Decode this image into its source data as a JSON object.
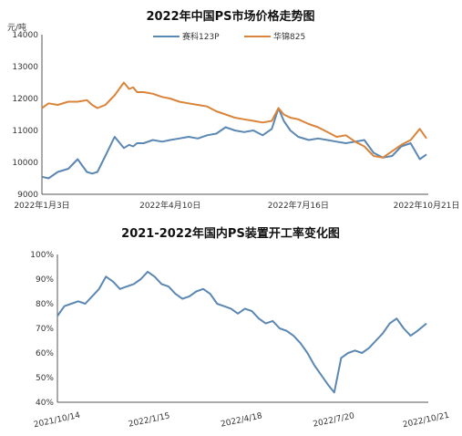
{
  "chart_data": [
    {
      "type": "line",
      "title": "2022年中国PS市场价格走势图",
      "unit_label": "元/吨",
      "ylim": [
        9000,
        14000
      ],
      "yticks": [
        "9000",
        "10000",
        "11000",
        "12000",
        "13000",
        "14000"
      ],
      "xticks": [
        "2022年1月3日",
        "2022年4月10日",
        "2022年7月16日",
        "2022年10月21日"
      ],
      "x_range": [
        "2022-01-03",
        "2022-10-21"
      ],
      "legend_position": "top",
      "colors": {
        "series1": "#5b87b3",
        "series2": "#d9843a"
      },
      "series": [
        {
          "name": "赛科123P",
          "x": [
            "2022-01-03",
            "2022-01-08",
            "2022-01-15",
            "2022-01-23",
            "2022-01-30",
            "2022-02-06",
            "2022-02-10",
            "2022-02-14",
            "2022-02-20",
            "2022-02-27",
            "2022-03-06",
            "2022-03-10",
            "2022-03-13",
            "2022-03-16",
            "2022-03-21",
            "2022-03-28",
            "2022-04-04",
            "2022-04-10",
            "2022-04-17",
            "2022-04-24",
            "2022-05-01",
            "2022-05-08",
            "2022-05-15",
            "2022-05-22",
            "2022-05-29",
            "2022-06-05",
            "2022-06-12",
            "2022-06-19",
            "2022-06-26",
            "2022-07-01",
            "2022-07-05",
            "2022-07-10",
            "2022-07-16",
            "2022-07-24",
            "2022-07-31",
            "2022-08-07",
            "2022-08-14",
            "2022-08-21",
            "2022-08-28",
            "2022-09-04",
            "2022-09-11",
            "2022-09-18",
            "2022-09-25",
            "2022-10-02",
            "2022-10-09",
            "2022-10-16",
            "2022-10-21"
          ],
          "values": [
            9550,
            9500,
            9700,
            9800,
            10100,
            9700,
            9650,
            9700,
            10200,
            10800,
            10450,
            10550,
            10500,
            10600,
            10600,
            10700,
            10650,
            10700,
            10750,
            10800,
            10750,
            10850,
            10900,
            11100,
            11000,
            10950,
            11000,
            10850,
            11050,
            11700,
            11300,
            11000,
            10800,
            10700,
            10750,
            10700,
            10650,
            10600,
            10650,
            10700,
            10300,
            10150,
            10200,
            10500,
            10600,
            10100,
            10250
          ]
        },
        {
          "name": "华锦825",
          "x": [
            "2022-01-03",
            "2022-01-08",
            "2022-01-15",
            "2022-01-23",
            "2022-01-30",
            "2022-02-06",
            "2022-02-10",
            "2022-02-14",
            "2022-02-20",
            "2022-02-27",
            "2022-03-06",
            "2022-03-10",
            "2022-03-13",
            "2022-03-16",
            "2022-03-21",
            "2022-03-28",
            "2022-04-04",
            "2022-04-10",
            "2022-04-17",
            "2022-04-24",
            "2022-05-01",
            "2022-05-08",
            "2022-05-15",
            "2022-05-22",
            "2022-05-29",
            "2022-06-05",
            "2022-06-12",
            "2022-06-19",
            "2022-06-26",
            "2022-07-01",
            "2022-07-05",
            "2022-07-10",
            "2022-07-16",
            "2022-07-24",
            "2022-07-31",
            "2022-08-07",
            "2022-08-14",
            "2022-08-21",
            "2022-08-28",
            "2022-09-04",
            "2022-09-11",
            "2022-09-18",
            "2022-09-25",
            "2022-10-02",
            "2022-10-09",
            "2022-10-16",
            "2022-10-21"
          ],
          "values": [
            11700,
            11850,
            11800,
            11900,
            11900,
            11950,
            11800,
            11700,
            11800,
            12100,
            12500,
            12300,
            12350,
            12200,
            12200,
            12150,
            12050,
            12000,
            11900,
            11850,
            11800,
            11750,
            11600,
            11500,
            11400,
            11350,
            11300,
            11250,
            11300,
            11700,
            11500,
            11400,
            11350,
            11200,
            11100,
            10950,
            10800,
            10850,
            10650,
            10500,
            10200,
            10150,
            10350,
            10550,
            10700,
            11050,
            10750
          ]
        }
      ]
    },
    {
      "type": "line",
      "title": "2021-2022年国内PS装置开工率变化图",
      "ylim": [
        40,
        100
      ],
      "yticks": [
        "40%",
        "50%",
        "60%",
        "70%",
        "80%",
        "90%",
        "100%"
      ],
      "xticks": [
        "2021/10/14",
        "2022/1/15",
        "2022/4/18",
        "2022/7/20",
        "2022/10/21"
      ],
      "x_range": [
        "2021-10-14",
        "2022-10-21"
      ],
      "colors": {
        "series1": "#5b87b3"
      },
      "series": [
        {
          "x": [
            "2021-10-14",
            "2021-10-21",
            "2021-10-28",
            "2021-11-04",
            "2021-11-11",
            "2021-11-18",
            "2021-11-25",
            "2021-12-02",
            "2021-12-09",
            "2021-12-16",
            "2021-12-23",
            "2021-12-30",
            "2022-01-06",
            "2022-01-13",
            "2022-01-20",
            "2022-01-27",
            "2022-02-03",
            "2022-02-10",
            "2022-02-17",
            "2022-02-24",
            "2022-03-03",
            "2022-03-10",
            "2022-03-17",
            "2022-03-24",
            "2022-03-31",
            "2022-04-07",
            "2022-04-14",
            "2022-04-21",
            "2022-04-28",
            "2022-05-05",
            "2022-05-12",
            "2022-05-19",
            "2022-05-26",
            "2022-06-02",
            "2022-06-09",
            "2022-06-16",
            "2022-06-23",
            "2022-06-30",
            "2022-07-07",
            "2022-07-14",
            "2022-07-20",
            "2022-07-27",
            "2022-08-03",
            "2022-08-10",
            "2022-08-17",
            "2022-08-24",
            "2022-08-31",
            "2022-09-07",
            "2022-09-14",
            "2022-09-21",
            "2022-09-28",
            "2022-10-05",
            "2022-10-12",
            "2022-10-21"
          ],
          "values": [
            75,
            79,
            80,
            81,
            80,
            83,
            86,
            91,
            89,
            86,
            87,
            88,
            90,
            93,
            91,
            88,
            87,
            84,
            82,
            83,
            85,
            86,
            84,
            80,
            79,
            78,
            76,
            78,
            77,
            74,
            72,
            73,
            70,
            69,
            67,
            64,
            60,
            55,
            51,
            47,
            44,
            58,
            60,
            61,
            60,
            62,
            65,
            68,
            72,
            74,
            70,
            67,
            69,
            72
          ]
        }
      ]
    }
  ]
}
